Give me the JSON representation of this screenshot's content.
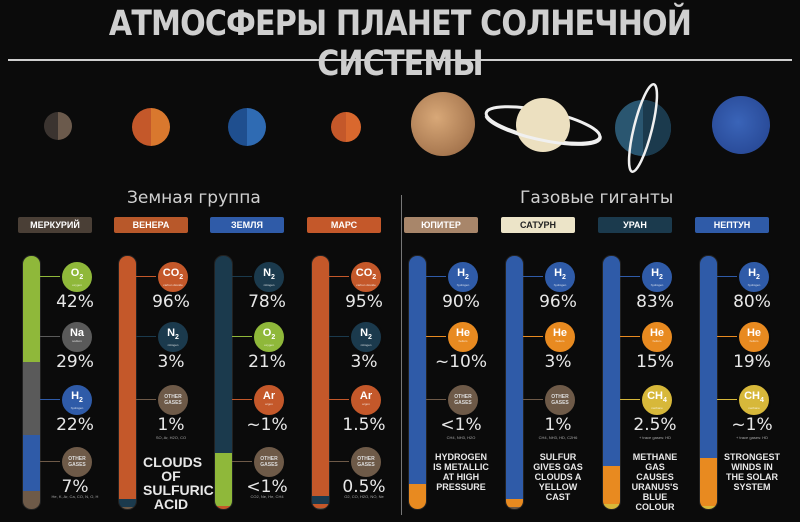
{
  "title": "АТМОСФЕРЫ ПЛАНЕТ СОЛНЕЧНОЙ СИСТЕМЫ",
  "groups": {
    "terrestrial": "Земная группа",
    "giants": "Газовые гиганты"
  },
  "colors": {
    "green": "#8fb83a",
    "gray": "#5a5a5a",
    "blue": "#2f5ba8",
    "lightblue": "#4f8ec4",
    "orange": "#c4582a",
    "brown": "#6e5a48",
    "navy": "#1b3a4d",
    "amber": "#e88a20",
    "yellow": "#d7b83a",
    "cream": "#ece4c8"
  },
  "planets": [
    {
      "name": "МЕРКУРИЙ",
      "icon": "mercury-icon",
      "tag_color": "#4a3f36",
      "tag_dark": false,
      "gases": [
        {
          "sym": "O",
          "sub": "2",
          "name": "oxygen",
          "color": "#8fb83a",
          "pct": "42%"
        },
        {
          "sym": "Na",
          "sub": "",
          "name": "sodium",
          "color": "#5a5a5a",
          "pct": "29%"
        },
        {
          "sym": "H",
          "sub": "2",
          "name": "hydrogen",
          "color": "#2f5ba8",
          "pct": "22%"
        },
        {
          "sym": "OTHER GASES",
          "sub": "",
          "name": "",
          "color": "#6e5a48",
          "pct": "7%",
          "other": true
        }
      ],
      "note": "",
      "detail": "He, K, Ar, Ca, CO, N, O, H"
    },
    {
      "name": "ВЕНЕРА",
      "icon": "venus-icon",
      "tag_color": "#b8582a",
      "tag_dark": false,
      "gases": [
        {
          "sym": "CO",
          "sub": "2",
          "name": "carbon dioxide",
          "color": "#c4582a",
          "pct": "96%"
        },
        {
          "sym": "N",
          "sub": "2",
          "name": "nitrogen",
          "color": "#1b3a4d",
          "pct": "3%"
        },
        {
          "sym": "OTHER GASES",
          "sub": "",
          "name": "",
          "color": "#6e5a48",
          "pct": "1%",
          "other": true
        }
      ],
      "note": "CLOUDS OF SULFURIC ACID",
      "detail": "SO, Ar, H2O, CO"
    },
    {
      "name": "ЗЕМЛЯ",
      "icon": "earth-icon",
      "tag_color": "#2f5ba8",
      "tag_dark": false,
      "gases": [
        {
          "sym": "N",
          "sub": "2",
          "name": "nitrogen",
          "color": "#1b3a4d",
          "pct": "78%"
        },
        {
          "sym": "O",
          "sub": "2",
          "name": "oxygen",
          "color": "#8fb83a",
          "pct": "21%"
        },
        {
          "sym": "Ar",
          "sub": "",
          "name": "argon",
          "color": "#c4582a",
          "pct": "~1%"
        },
        {
          "sym": "OTHER GASES",
          "sub": "",
          "name": "",
          "color": "#6e5a48",
          "pct": "<1%",
          "other": true
        }
      ],
      "note": "",
      "detail": "CO2, Ne, He, CH4"
    },
    {
      "name": "МАРС",
      "icon": "mars-icon",
      "tag_color": "#c4582a",
      "tag_dark": false,
      "gases": [
        {
          "sym": "CO",
          "sub": "2",
          "name": "carbon dioxide",
          "color": "#c4582a",
          "pct": "95%"
        },
        {
          "sym": "N",
          "sub": "2",
          "name": "nitrogen",
          "color": "#1b3a4d",
          "pct": "3%"
        },
        {
          "sym": "Ar",
          "sub": "",
          "name": "argon",
          "color": "#c4582a",
          "pct": "1.5%"
        },
        {
          "sym": "OTHER GASES",
          "sub": "",
          "name": "",
          "color": "#6e5a48",
          "pct": "0.5%",
          "other": true
        }
      ],
      "note": "",
      "detail": "O2, CO, H2O, NO, Ne"
    },
    {
      "name": "ЮПИТЕР",
      "icon": "jupiter-icon",
      "tag_color": "#a8866a",
      "tag_dark": false,
      "gases": [
        {
          "sym": "H",
          "sub": "2",
          "name": "hydrogen",
          "color": "#2f5ba8",
          "pct": "90%"
        },
        {
          "sym": "He",
          "sub": "",
          "name": "helium",
          "color": "#e88a20",
          "pct": "~10%"
        },
        {
          "sym": "OTHER GASES",
          "sub": "",
          "name": "",
          "color": "#6e5a48",
          "pct": "<1%",
          "other": true
        }
      ],
      "note": "HYDROGEN IS METALLIC AT HIGH PRESSURE",
      "detail": "CH4, NH3, H2O"
    },
    {
      "name": "САТУРН",
      "icon": "saturn-icon",
      "tag_color": "#ece4c8",
      "tag_dark": true,
      "gases": [
        {
          "sym": "H",
          "sub": "2",
          "name": "hydrogen",
          "color": "#2f5ba8",
          "pct": "96%"
        },
        {
          "sym": "He",
          "sub": "",
          "name": "helium",
          "color": "#e88a20",
          "pct": "3%"
        },
        {
          "sym": "OTHER GASES",
          "sub": "",
          "name": "",
          "color": "#6e5a48",
          "pct": "1%",
          "other": true
        }
      ],
      "note": "SULFUR GIVES GAS CLOUDS A YELLOW CAST",
      "detail": "CH4, NH3, HD, C2H6"
    },
    {
      "name": "УРАН",
      "icon": "uranus-icon",
      "tag_color": "#1b3a4d",
      "tag_dark": false,
      "gases": [
        {
          "sym": "H",
          "sub": "2",
          "name": "hydrogen",
          "color": "#2f5ba8",
          "pct": "83%"
        },
        {
          "sym": "He",
          "sub": "",
          "name": "helium",
          "color": "#e88a20",
          "pct": "15%"
        },
        {
          "sym": "CH",
          "sub": "4",
          "name": "methane",
          "color": "#d7b83a",
          "pct": "2.5%"
        }
      ],
      "note": "METHANE GAS CAUSES URANUS'S BLUE COLOUR",
      "detail": "+ trace gases: HD"
    },
    {
      "name": "НЕПТУН",
      "icon": "neptune-icon",
      "tag_color": "#2f5ba8",
      "tag_dark": false,
      "gases": [
        {
          "sym": "H",
          "sub": "2",
          "name": "hydrogen",
          "color": "#2f5ba8",
          "pct": "80%"
        },
        {
          "sym": "He",
          "sub": "",
          "name": "helium",
          "color": "#e88a20",
          "pct": "19%"
        },
        {
          "sym": "CH",
          "sub": "4",
          "name": "methane",
          "color": "#d7b83a",
          "pct": "~1%"
        }
      ],
      "note": "STRONGEST WINDS IN THE SOLAR SYSTEM",
      "detail": "+ trace gases: HD"
    }
  ]
}
